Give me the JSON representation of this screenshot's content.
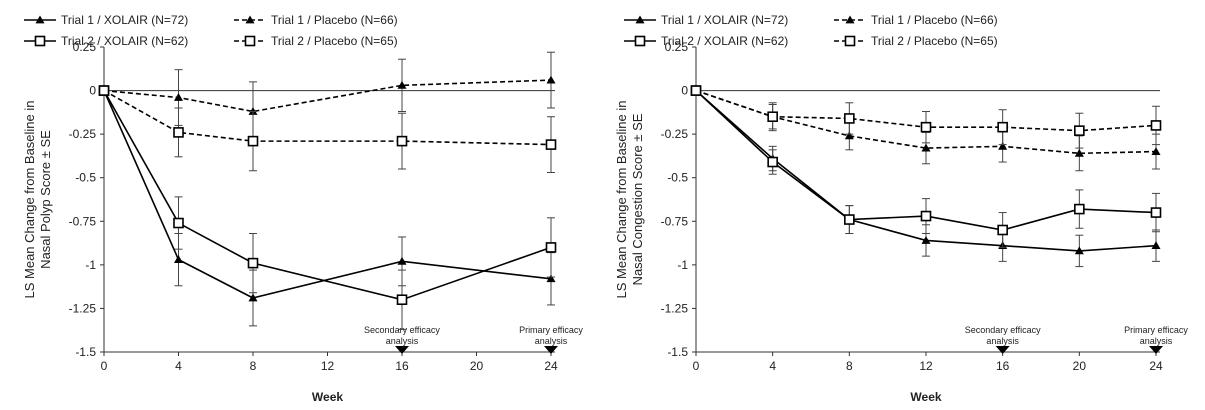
{
  "chart_data": [
    {
      "type": "line",
      "ylabel": "LS Mean Change from Baseline in Nasal Polyp Score ± SE",
      "ylabel_lines": [
        "LS Mean Change from Baseline in",
        "Nasal Polyp Score ± SE"
      ],
      "xlabel": "Week",
      "xlim": [
        0,
        24
      ],
      "ylim": [
        -1.5,
        0.25
      ],
      "xticks": [
        0,
        4,
        8,
        12,
        16,
        20,
        24
      ],
      "yticks": [
        0.25,
        0,
        -0.25,
        -0.5,
        -0.75,
        -1,
        -1.25,
        -1.5
      ],
      "ytick_labels": [
        "0.25",
        "0",
        "-0.25",
        "-0.5",
        "-0.75",
        "-1",
        "-1.25",
        "-1.5"
      ],
      "legend_position": "top",
      "series": [
        {
          "name": "Trial 1 / XOLAIR (N=72)",
          "marker": "filled-triangle",
          "line": "solid",
          "x": [
            0,
            4,
            8,
            16,
            24
          ],
          "y": [
            0,
            -0.97,
            -1.19,
            -0.98,
            -1.08
          ],
          "se": [
            0,
            0.15,
            0.16,
            0.14,
            0.15
          ]
        },
        {
          "name": "Trial 1 / Placebo (N=66)",
          "marker": "filled-triangle",
          "line": "dashed",
          "x": [
            0,
            4,
            8,
            16,
            24
          ],
          "y": [
            0,
            -0.04,
            -0.12,
            0.03,
            0.06
          ],
          "se": [
            0,
            0.16,
            0.17,
            0.15,
            0.16
          ]
        },
        {
          "name": "Trial 2 / XOLAIR (N=62)",
          "marker": "open-square",
          "line": "solid",
          "x": [
            0,
            4,
            8,
            16,
            24
          ],
          "y": [
            0,
            -0.76,
            -0.99,
            -1.2,
            -0.9
          ],
          "se": [
            0,
            0.15,
            0.17,
            0.17,
            0.17
          ]
        },
        {
          "name": "Trial 2 / Placebo (N=65)",
          "marker": "open-square",
          "line": "dashed",
          "x": [
            0,
            4,
            8,
            16,
            24
          ],
          "y": [
            0,
            -0.24,
            -0.29,
            -0.29,
            -0.31
          ],
          "se": [
            0,
            0.14,
            0.17,
            0.16,
            0.16
          ]
        }
      ],
      "annotations": [
        {
          "x": 16,
          "lines": [
            "Secondary efficacy",
            "analysis"
          ]
        },
        {
          "x": 24,
          "lines": [
            "Primary efficacy",
            "analysis"
          ]
        }
      ]
    },
    {
      "type": "line",
      "ylabel": "LS Mean Change from Baseline in Nasal Congestion Score ± SE",
      "ylabel_lines": [
        "LS Mean Change from Baseline in",
        "Nasal Congestion Score ± SE"
      ],
      "xlabel": "Week",
      "xlim": [
        0,
        24
      ],
      "ylim": [
        -1.5,
        0.25
      ],
      "xticks": [
        0,
        4,
        8,
        12,
        16,
        20,
        24
      ],
      "yticks": [
        0.25,
        0,
        -0.25,
        -0.5,
        -0.75,
        -1,
        -1.25,
        -1.5
      ],
      "ytick_labels": [
        "0.25",
        "0",
        "-0.25",
        "-0.5",
        "-0.75",
        "-1",
        "-1.25",
        "-1.5"
      ],
      "legend_position": "top",
      "series": [
        {
          "name": "Trial 1 / XOLAIR (N=72)",
          "marker": "filled-triangle",
          "line": "solid",
          "x": [
            0,
            4,
            8,
            12,
            16,
            20,
            24
          ],
          "y": [
            0,
            -0.39,
            -0.74,
            -0.86,
            -0.89,
            -0.92,
            -0.89
          ],
          "se": [
            0,
            0.07,
            0.08,
            0.09,
            0.09,
            0.09,
            0.09
          ]
        },
        {
          "name": "Trial 1 / Placebo (N=66)",
          "marker": "filled-triangle",
          "line": "dashed",
          "x": [
            0,
            4,
            8,
            12,
            16,
            20,
            24
          ],
          "y": [
            0,
            -0.15,
            -0.26,
            -0.33,
            -0.32,
            -0.36,
            -0.35
          ],
          "se": [
            0,
            0.07,
            0.08,
            0.09,
            0.09,
            0.1,
            0.1
          ]
        },
        {
          "name": "Trial 2 / XOLAIR (N=62)",
          "marker": "open-square",
          "line": "solid",
          "x": [
            0,
            4,
            8,
            12,
            16,
            20,
            24
          ],
          "y": [
            0,
            -0.41,
            -0.74,
            -0.72,
            -0.8,
            -0.68,
            -0.7
          ],
          "se": [
            0,
            0.07,
            0.08,
            0.1,
            0.1,
            0.11,
            0.11
          ]
        },
        {
          "name": "Trial 2 / Placebo (N=65)",
          "marker": "open-square",
          "line": "dashed",
          "x": [
            0,
            4,
            8,
            12,
            16,
            20,
            24
          ],
          "y": [
            0,
            -0.15,
            -0.16,
            -0.21,
            -0.21,
            -0.23,
            -0.2
          ],
          "se": [
            0,
            0.08,
            0.09,
            0.09,
            0.1,
            0.1,
            0.11
          ]
        }
      ],
      "annotations": [
        {
          "x": 16,
          "lines": [
            "Secondary efficacy",
            "analysis"
          ]
        },
        {
          "x": 24,
          "lines": [
            "Primary efficacy",
            "analysis"
          ]
        }
      ]
    }
  ]
}
